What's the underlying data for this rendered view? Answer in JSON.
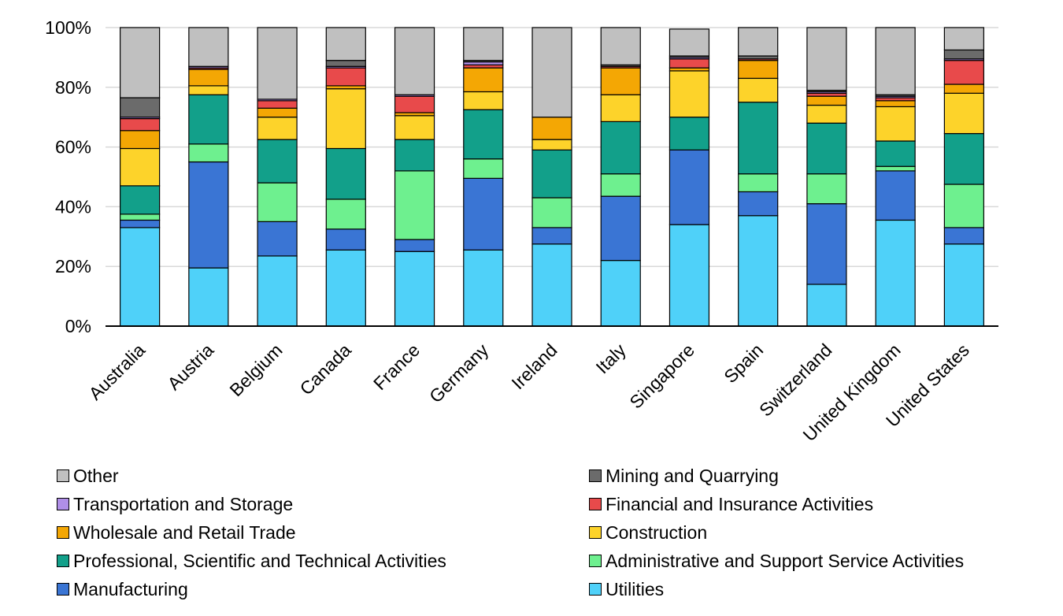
{
  "chart_data": {
    "type": "bar",
    "stacked": true,
    "percent": true,
    "categories": [
      "Australia",
      "Austria",
      "Belgium",
      "Canada",
      "France",
      "Germany",
      "Ireland",
      "Italy",
      "Singapore",
      "Spain",
      "Switzerland",
      "United Kingdom",
      "United States"
    ],
    "ylim": [
      0,
      100
    ],
    "yticks": [
      "0%",
      "20%",
      "40%",
      "60%",
      "80%",
      "100%"
    ],
    "grid": true,
    "legend_position": "bottom",
    "series": [
      {
        "name": "Utilities",
        "color": "#4FD1F9",
        "values": [
          33,
          19.5,
          23.5,
          25.5,
          25,
          25.5,
          27.5,
          22,
          34,
          37,
          14,
          35.5,
          27.5
        ]
      },
      {
        "name": "Manufacturing",
        "color": "#3A75D4",
        "values": [
          2.5,
          35.5,
          11.5,
          7,
          4,
          24,
          5.5,
          21.5,
          25,
          8,
          27,
          16.5,
          5.5
        ]
      },
      {
        "name": "Administrative and Support Service Activities",
        "color": "#6EF08F",
        "values": [
          2,
          6,
          13,
          10,
          23,
          6.5,
          10,
          7.5,
          0,
          6,
          10,
          1.5,
          14.5
        ]
      },
      {
        "name": "Professional, Scientific and Technical Activities",
        "color": "#12A08A",
        "values": [
          9.5,
          16.5,
          14.5,
          17,
          10.5,
          16.5,
          16,
          17.5,
          11,
          24,
          17,
          8.5,
          17
        ]
      },
      {
        "name": "Construction",
        "color": "#FDD32A",
        "values": [
          12.5,
          3,
          7.5,
          20,
          8,
          6,
          3.5,
          9,
          15.5,
          8,
          6,
          11.5,
          13.5
        ]
      },
      {
        "name": "Wholesale and Retail Trade",
        "color": "#F4A704",
        "values": [
          6,
          5.5,
          3,
          1,
          1,
          8,
          7.5,
          9,
          1,
          6,
          3,
          2,
          3
        ]
      },
      {
        "name": "Financial and Insurance Activities",
        "color": "#E84A4B",
        "values": [
          4,
          0.5,
          2.5,
          6,
          5.5,
          1,
          0,
          0.5,
          3,
          0.5,
          1,
          1,
          8
        ]
      },
      {
        "name": "Transportation and Storage",
        "color": "#B08FE8",
        "values": [
          0.5,
          0.5,
          0.5,
          0.5,
          0.5,
          1,
          0,
          0,
          0.5,
          0,
          0.5,
          0.5,
          0.5
        ]
      },
      {
        "name": "Mining and Quarrying",
        "color": "#6B6B6B",
        "values": [
          6.5,
          0,
          0,
          2,
          0,
          0.5,
          0,
          0.5,
          0.5,
          1,
          0.5,
          0.5,
          3
        ]
      },
      {
        "name": "Other",
        "color": "#C0C0C0",
        "values": [
          23.5,
          13,
          24,
          11,
          22.5,
          11,
          30,
          12.5,
          9,
          9.5,
          21,
          22.5,
          7.5
        ]
      }
    ],
    "legend_order": [
      "Other",
      "Mining and Quarrying",
      "Transportation and Storage",
      "Financial and Insurance Activities",
      "Wholesale and Retail Trade",
      "Construction",
      "Professional, Scientific and Technical Activities",
      "Administrative and Support Service Activities",
      "Manufacturing",
      "Utilities"
    ]
  }
}
